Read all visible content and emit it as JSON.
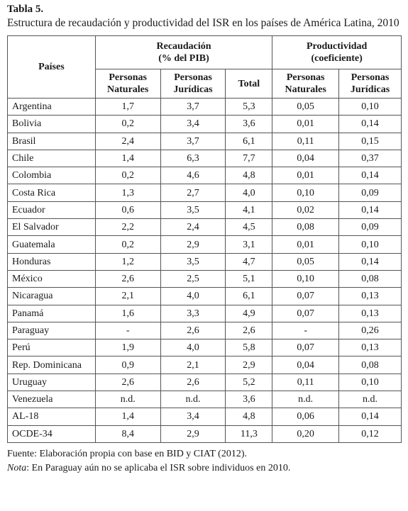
{
  "title": "Tabla 5.",
  "caption": "Estructura de recaudación y productividad del ISR en los países de América Latina, 2010",
  "headers": {
    "country": "Países",
    "recaudacion_l1": "Recaudación",
    "recaudacion_l2": "(% del PIB)",
    "productividad_l1": "Productividad",
    "productividad_l2": "(coeficiente)",
    "rec_pn_l1": "Personas",
    "rec_pn_l2": "Naturales",
    "rec_pj_l1": "Personas",
    "rec_pj_l2": "Jurídicas",
    "rec_total": "Total",
    "prod_pn_l1": "Personas",
    "prod_pn_l2": "Naturales",
    "prod_pj_l1": "Personas",
    "prod_pj_l2": "Jurídicas"
  },
  "rows": [
    [
      "Argentina",
      "1,7",
      "3,7",
      "5,3",
      "0,05",
      "0,10"
    ],
    [
      "Bolivia",
      "0,2",
      "3,4",
      "3,6",
      "0,01",
      "0,14"
    ],
    [
      "Brasil",
      "2,4",
      "3,7",
      "6,1",
      "0,11",
      "0,15"
    ],
    [
      "Chile",
      "1,4",
      "6,3",
      "7,7",
      "0,04",
      "0,37"
    ],
    [
      "Colombia",
      "0,2",
      "4,6",
      "4,8",
      "0,01",
      "0,14"
    ],
    [
      "Costa Rica",
      "1,3",
      "2,7",
      "4,0",
      "0,10",
      "0,09"
    ],
    [
      "Ecuador",
      "0,6",
      "3,5",
      "4,1",
      "0,02",
      "0,14"
    ],
    [
      "El Salvador",
      "2,2",
      "2,4",
      "4,5",
      "0,08",
      "0,09"
    ],
    [
      "Guatemala",
      "0,2",
      "2,9",
      "3,1",
      "0,01",
      "0,10"
    ],
    [
      "Honduras",
      "1,2",
      "3,5",
      "4,7",
      "0,05",
      "0,14"
    ],
    [
      "México",
      "2,6",
      "2,5",
      "5,1",
      "0,10",
      "0,08"
    ],
    [
      "Nicaragua",
      "2,1",
      "4,0",
      "6,1",
      "0,07",
      "0,13"
    ],
    [
      "Panamá",
      "1,6",
      "3,3",
      "4,9",
      "0,07",
      "0,13"
    ],
    [
      "Paraguay",
      "-",
      "2,6",
      "2,6",
      "-",
      "0,26"
    ],
    [
      "Perú",
      "1,9",
      "4,0",
      "5,8",
      "0,07",
      "0,13"
    ],
    [
      "Rep. Dominicana",
      "0,9",
      "2,1",
      "2,9",
      "0,04",
      "0,08"
    ],
    [
      "Uruguay",
      "2,6",
      "2,6",
      "5,2",
      "0,11",
      "0,10"
    ],
    [
      "Venezuela",
      "n.d.",
      "n.d.",
      "3,6",
      "n.d.",
      "n.d."
    ],
    [
      "AL-18",
      "1,4",
      "3,4",
      "4,8",
      "0,06",
      "0,14"
    ],
    [
      "OCDE-34",
      "8,4",
      "2,9",
      "11,3",
      "0,20",
      "0,12"
    ]
  ],
  "source": "Fuente: Elaboración propia con base en BID y CIAT (2012).",
  "note_label": "Nota",
  "note_text": ": En Paraguay aún no se aplicaba el ISR sobre individuos en 2010."
}
